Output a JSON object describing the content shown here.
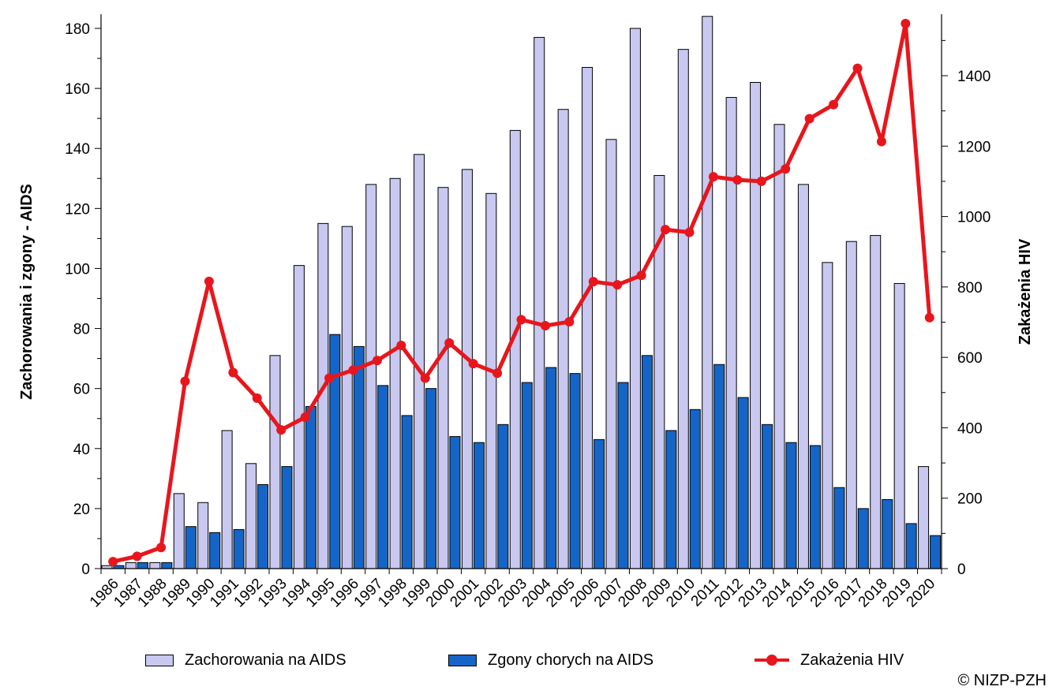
{
  "chart_data": {
    "type": "bar",
    "categories": [
      "1986",
      "1987",
      "1988",
      "1989",
      "1990",
      "1991",
      "1992",
      "1993",
      "1994",
      "1995",
      "1996",
      "1997",
      "1998",
      "1999",
      "2000",
      "2001",
      "2002",
      "2003",
      "2004",
      "2005",
      "2006",
      "2007",
      "2008",
      "2009",
      "2010",
      "2011",
      "2012",
      "2013",
      "2014",
      "2015",
      "2016",
      "2017",
      "2018",
      "2019",
      "2020"
    ],
    "series": [
      {
        "name": "Zachorowania na AIDS",
        "type": "bar",
        "axis": "left",
        "color": "#c8c8f0",
        "values": [
          1,
          2,
          2,
          25,
          22,
          46,
          35,
          71,
          101,
          115,
          114,
          128,
          130,
          138,
          127,
          133,
          125,
          146,
          177,
          153,
          167,
          143,
          180,
          131,
          173,
          184,
          157,
          162,
          148,
          128,
          102,
          109,
          111,
          95,
          34
        ]
      },
      {
        "name": "Zgony chorych na AIDS",
        "type": "bar",
        "axis": "left",
        "color": "#1565c8",
        "values": [
          1,
          2,
          2,
          14,
          12,
          13,
          28,
          34,
          54,
          78,
          74,
          61,
          51,
          60,
          44,
          42,
          48,
          62,
          67,
          65,
          43,
          62,
          71,
          46,
          53,
          68,
          57,
          48,
          42,
          41,
          27,
          20,
          23,
          15,
          11
        ]
      },
      {
        "name": "Zakażenia HIV",
        "type": "line",
        "axis": "right",
        "color": "#e8161c",
        "values": [
          20,
          35,
          60,
          532,
          816,
          557,
          484,
          394,
          430,
          541,
          564,
          591,
          634,
          541,
          641,
          582,
          555,
          707,
          690,
          701,
          815,
          806,
          833,
          963,
          955,
          1113,
          1104,
          1100,
          1135,
          1278,
          1318,
          1421,
          1213,
          1548,
          713
        ]
      }
    ],
    "y_left": {
      "label": "Zachorowania i zgony - AIDS",
      "min": 0,
      "max": 180,
      "ticks": [
        0,
        20,
        40,
        60,
        80,
        100,
        120,
        140,
        160,
        180
      ]
    },
    "y_right": {
      "label": "Zakażenia HIV",
      "min": 0,
      "max": 1400,
      "ticks": [
        0,
        200,
        400,
        600,
        800,
        1000,
        1200,
        1400
      ]
    },
    "grid": false,
    "legend_position": "bottom"
  },
  "copyright": "© NIZP-PZH"
}
